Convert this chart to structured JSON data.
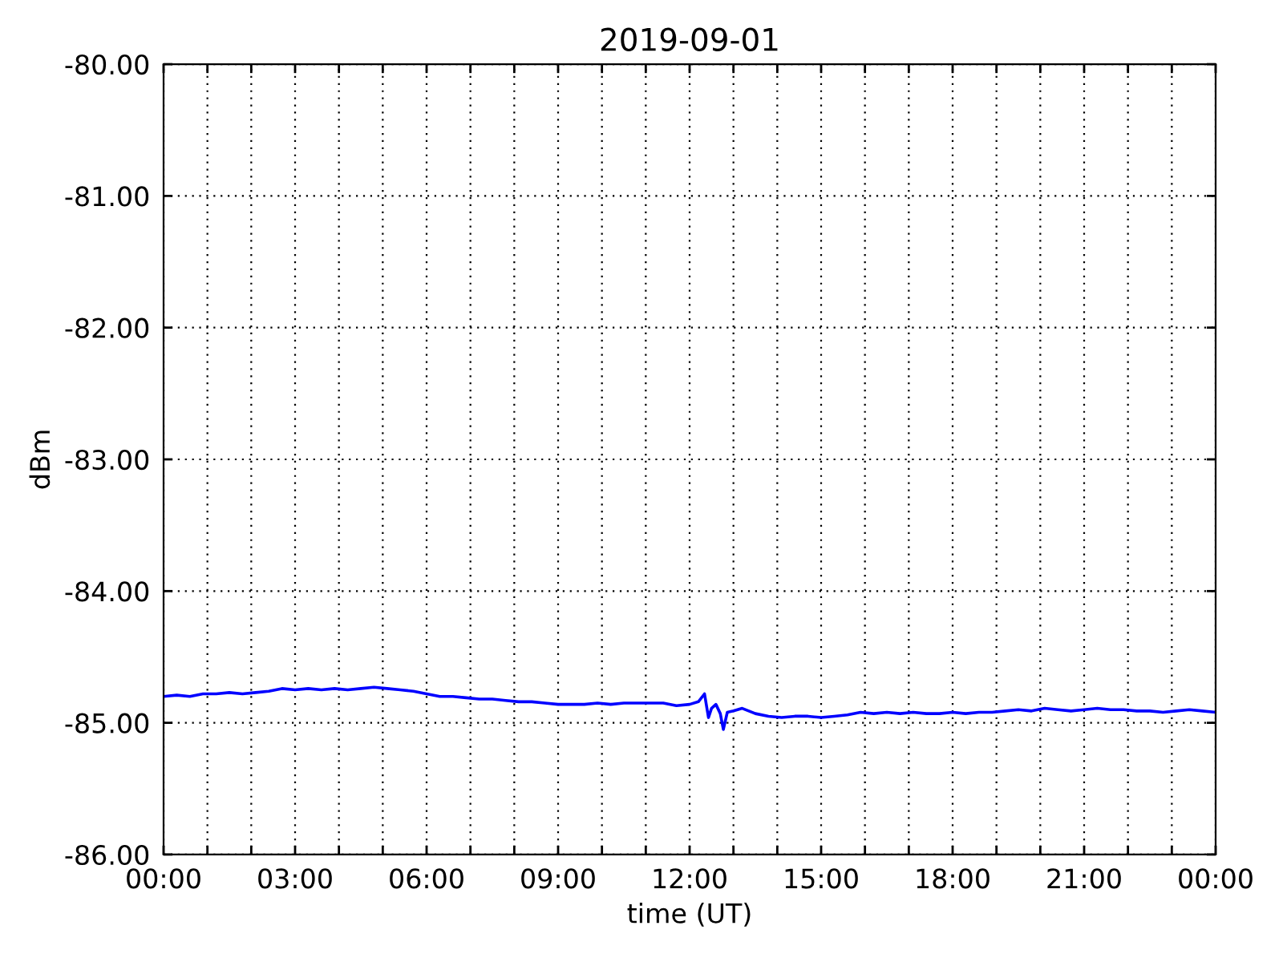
{
  "chart_data": {
    "type": "line",
    "title": "2019-09-01",
    "xlabel": "time (UT)",
    "ylabel": "dBm",
    "series": [
      {
        "color": "#0000ff",
        "x": [
          0.0,
          0.3,
          0.6,
          0.9,
          1.2,
          1.5,
          1.8,
          2.1,
          2.4,
          2.7,
          3.0,
          3.3,
          3.6,
          3.9,
          4.2,
          4.5,
          4.8,
          5.1,
          5.4,
          5.7,
          6.0,
          6.3,
          6.6,
          6.9,
          7.2,
          7.5,
          7.8,
          8.1,
          8.4,
          8.7,
          9.0,
          9.3,
          9.6,
          9.9,
          10.2,
          10.5,
          10.8,
          11.1,
          11.4,
          11.7,
          12.0,
          12.2,
          12.34,
          12.43,
          12.5,
          12.6,
          12.7,
          12.77,
          12.86,
          13.0,
          13.2,
          13.5,
          13.8,
          14.1,
          14.4,
          14.7,
          15.0,
          15.3,
          15.6,
          15.9,
          16.2,
          16.5,
          16.8,
          17.1,
          17.4,
          17.7,
          18.0,
          18.3,
          18.6,
          18.9,
          19.2,
          19.5,
          19.8,
          20.1,
          20.4,
          20.7,
          21.0,
          21.3,
          21.6,
          21.9,
          22.2,
          22.5,
          22.8,
          23.1,
          23.4,
          23.7,
          24.0
        ],
        "values": [
          -84.8,
          -84.79,
          -84.8,
          -84.78,
          -84.78,
          -84.77,
          -84.78,
          -84.77,
          -84.76,
          -84.74,
          -84.75,
          -84.74,
          -84.75,
          -84.74,
          -84.75,
          -84.74,
          -84.73,
          -84.74,
          -84.75,
          -84.76,
          -84.78,
          -84.8,
          -84.8,
          -84.81,
          -84.82,
          -84.82,
          -84.83,
          -84.84,
          -84.84,
          -84.85,
          -84.86,
          -84.86,
          -84.86,
          -84.85,
          -84.86,
          -84.85,
          -84.85,
          -84.85,
          -84.85,
          -84.87,
          -84.86,
          -84.84,
          -84.78,
          -84.96,
          -84.89,
          -84.86,
          -84.93,
          -85.05,
          -84.92,
          -84.91,
          -84.89,
          -84.93,
          -84.95,
          -84.96,
          -84.95,
          -84.95,
          -84.96,
          -84.95,
          -84.94,
          -84.92,
          -84.93,
          -84.92,
          -84.93,
          -84.92,
          -84.93,
          -84.93,
          -84.92,
          -84.93,
          -84.92,
          -84.92,
          -84.91,
          -84.9,
          -84.91,
          -84.89,
          -84.9,
          -84.91,
          -84.9,
          -84.89,
          -84.9,
          -84.9,
          -84.91,
          -84.91,
          -84.92,
          -84.91,
          -84.9,
          -84.91,
          -84.92
        ]
      }
    ],
    "xlim": [
      0,
      24
    ],
    "xticks": [
      {
        "value": 0,
        "label": "00:00"
      },
      {
        "value": 1,
        "label": null
      },
      {
        "value": 2,
        "label": null
      },
      {
        "value": 3,
        "label": "03:00"
      },
      {
        "value": 4,
        "label": null
      },
      {
        "value": 5,
        "label": null
      },
      {
        "value": 6,
        "label": "06:00"
      },
      {
        "value": 7,
        "label": null
      },
      {
        "value": 8,
        "label": null
      },
      {
        "value": 9,
        "label": "09:00"
      },
      {
        "value": 10,
        "label": null
      },
      {
        "value": 11,
        "label": null
      },
      {
        "value": 12,
        "label": "12:00"
      },
      {
        "value": 13,
        "label": null
      },
      {
        "value": 14,
        "label": null
      },
      {
        "value": 15,
        "label": "15:00"
      },
      {
        "value": 16,
        "label": null
      },
      {
        "value": 17,
        "label": null
      },
      {
        "value": 18,
        "label": "18:00"
      },
      {
        "value": 19,
        "label": null
      },
      {
        "value": 20,
        "label": null
      },
      {
        "value": 21,
        "label": "21:00"
      },
      {
        "value": 22,
        "label": null
      },
      {
        "value": 23,
        "label": null
      },
      {
        "value": 24,
        "label": "00:00"
      }
    ],
    "ylim": [
      -86,
      -80
    ],
    "yticks": [
      {
        "value": -86,
        "label": "-86.00"
      },
      {
        "value": -85,
        "label": "-85.00"
      },
      {
        "value": -84,
        "label": "-84.00"
      },
      {
        "value": -83,
        "label": "-83.00"
      },
      {
        "value": -82,
        "label": "-82.00"
      },
      {
        "value": -81,
        "label": "-81.00"
      },
      {
        "value": -80,
        "label": "-80.00"
      }
    ],
    "grid": true,
    "marker": "none",
    "line_style": "solid"
  }
}
